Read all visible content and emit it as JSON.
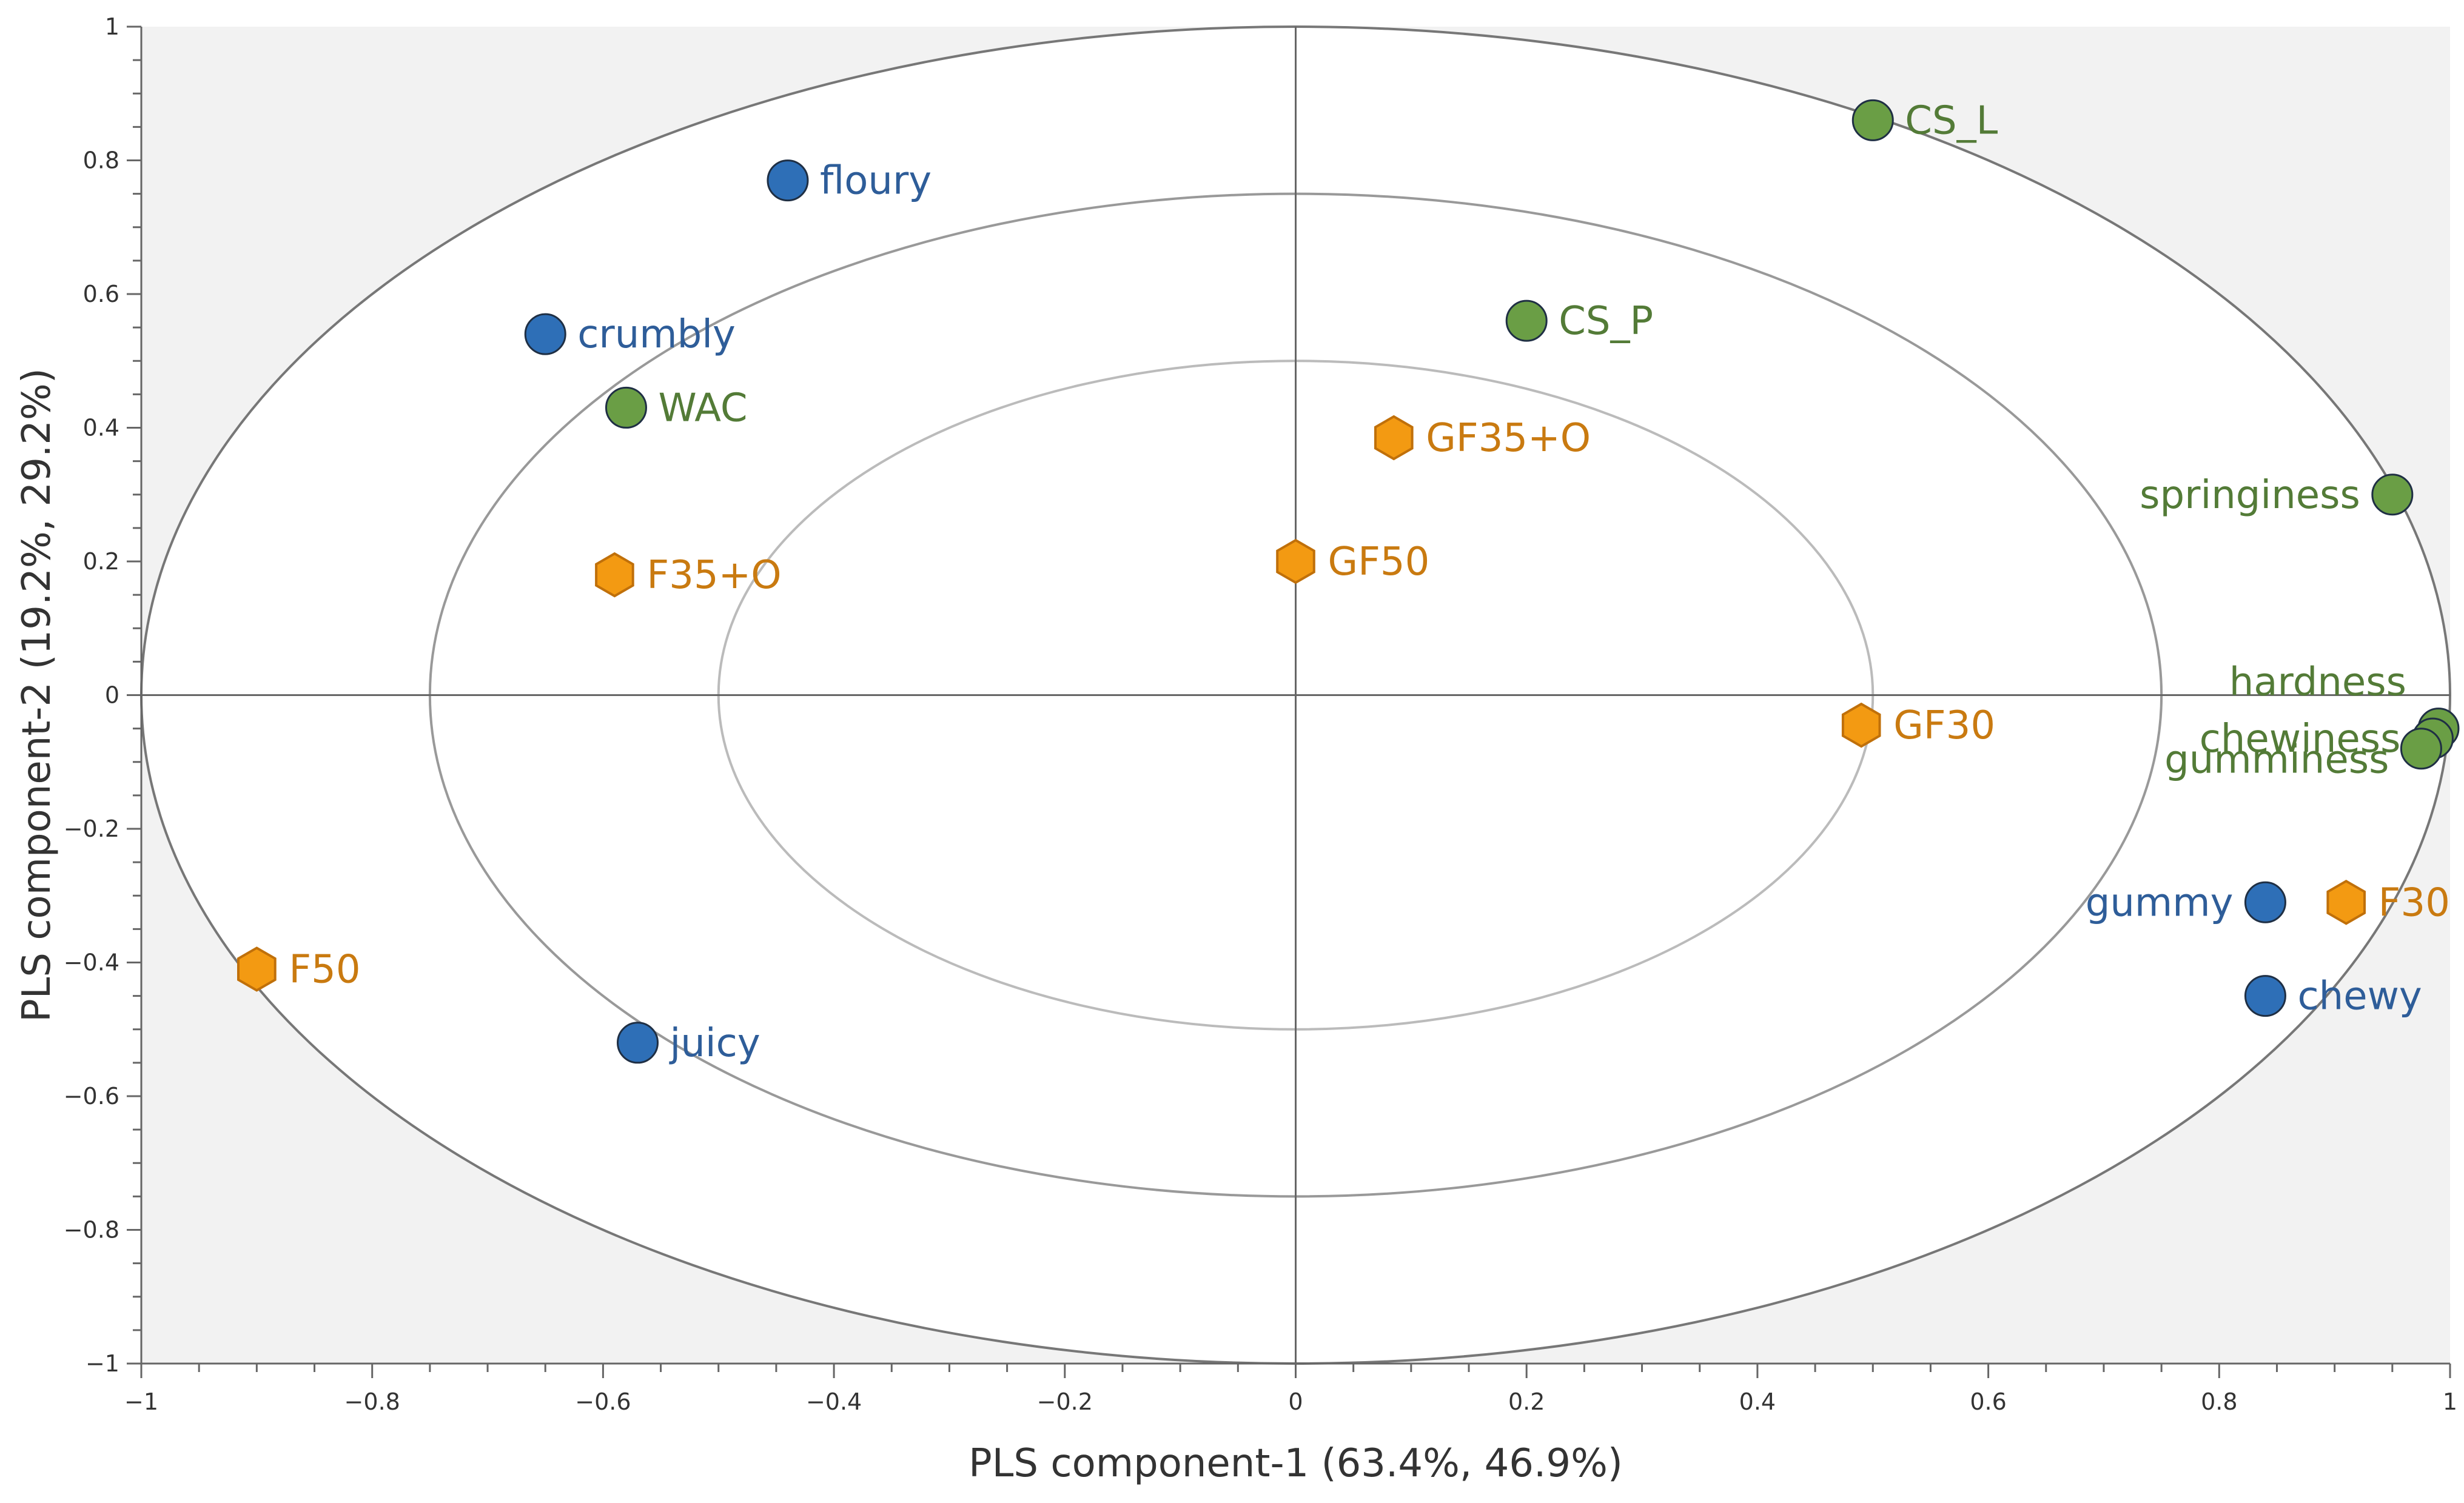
{
  "colors": {
    "plot_background": "#f2f2f2",
    "circle_fill": "#ffffff",
    "outer_circle": "#777777",
    "mid_circle": "#999999",
    "inner_circle": "#bbbbbb",
    "axis_line": "#666666",
    "blue_marker": "#2e6fb7",
    "blue_label": "#2e5d99",
    "green_marker": "#6a9e45",
    "green_label": "#537b37",
    "orange_marker": "#f39a12",
    "orange_label": "#c97a10"
  },
  "chart_data": {
    "type": "scatter",
    "title": "",
    "xlabel": "PLS component-1 (63.4%, 46.9%)",
    "ylabel": "PLS component-2 (19.2%, 29.2%)",
    "xlim": [
      -1,
      1
    ],
    "ylim": [
      -1,
      1
    ],
    "x_ticks": [
      -1,
      -0.8,
      -0.6,
      -0.4,
      -0.2,
      0,
      0.2,
      0.4,
      0.6,
      0.8,
      1
    ],
    "y_ticks": [
      -1,
      -0.8,
      -0.6,
      -0.4,
      -0.2,
      0,
      0.2,
      0.4,
      0.6,
      0.8,
      1
    ],
    "x_tick_labels": [
      "−1",
      "−0.8",
      "−0.6",
      "−0.4",
      "−0.2",
      "0",
      "0.2",
      "0.4",
      "0.6",
      "0.8",
      "1"
    ],
    "y_tick_labels": [
      "−1",
      "−0.8",
      "−0.6",
      "−0.4",
      "−0.2",
      "0",
      "0.2",
      "0.4",
      "0.6",
      "0.8",
      "1"
    ],
    "correlation_circles": [
      {
        "name": "outer",
        "radius": 1.0
      },
      {
        "name": "middle",
        "radius": 0.75
      },
      {
        "name": "inner",
        "radius": 0.5
      }
    ],
    "series": [
      {
        "name": "sensory attributes",
        "marker": "circle",
        "color_key": "blue",
        "points": [
          {
            "label": "floury",
            "x": -0.44,
            "y": 0.77,
            "label_side": "right"
          },
          {
            "label": "crumbly",
            "x": -0.65,
            "y": 0.54,
            "label_side": "right"
          },
          {
            "label": "juicy",
            "x": -0.57,
            "y": -0.52,
            "label_side": "right"
          },
          {
            "label": "gummy",
            "x": 0.84,
            "y": -0.31,
            "label_side": "left"
          },
          {
            "label": "chewy",
            "x": 0.84,
            "y": -0.45,
            "label_side": "right"
          }
        ]
      },
      {
        "name": "instrumental variables",
        "marker": "circle",
        "color_key": "green",
        "points": [
          {
            "label": "CS_L",
            "x": 0.5,
            "y": 0.86,
            "label_side": "right"
          },
          {
            "label": "CS_P",
            "x": 0.2,
            "y": 0.56,
            "label_side": "right"
          },
          {
            "label": "WAC",
            "x": -0.58,
            "y": 0.43,
            "label_side": "right"
          },
          {
            "label": "springiness",
            "x": 0.95,
            "y": 0.3,
            "label_side": "left"
          },
          {
            "label": "hardness",
            "x": 0.99,
            "y": -0.05,
            "label_side": "left-above"
          },
          {
            "label": "chewiness",
            "x": 0.985,
            "y": -0.065,
            "label_side": "left"
          },
          {
            "label": "gumminess",
            "x": 0.975,
            "y": -0.08,
            "label_side": "left-below"
          }
        ]
      },
      {
        "name": "samples",
        "marker": "hexagon",
        "color_key": "orange",
        "points": [
          {
            "label": "GF35+O",
            "x": 0.085,
            "y": 0.385,
            "label_side": "right"
          },
          {
            "label": "GF50",
            "x": 0.0,
            "y": 0.2,
            "label_side": "right"
          },
          {
            "label": "F35+O",
            "x": -0.59,
            "y": 0.18,
            "label_side": "right"
          },
          {
            "label": "GF30",
            "x": 0.49,
            "y": -0.045,
            "label_side": "right"
          },
          {
            "label": "F30",
            "x": 0.91,
            "y": -0.31,
            "label_side": "right"
          },
          {
            "label": "F50",
            "x": -0.9,
            "y": -0.41,
            "label_side": "right"
          }
        ]
      }
    ]
  }
}
